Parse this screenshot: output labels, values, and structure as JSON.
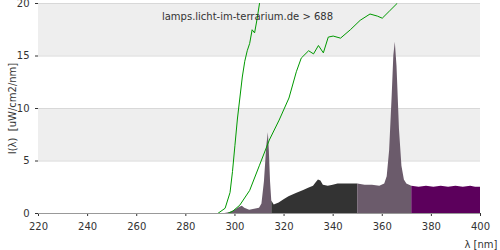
{
  "chart_data": {
    "type": "area",
    "title": "lamps.licht-im-terrarium.de > 688",
    "x_label": "λ [nm]",
    "y_label": "I(λ)  [uW/cm2/nm]",
    "xlim": [
      220,
      400
    ],
    "xticks": [
      220,
      240,
      260,
      280,
      300,
      320,
      340,
      360,
      380,
      400
    ],
    "ylim": [
      0,
      20
    ],
    "yticks": [
      0,
      5,
      10,
      15,
      20
    ],
    "grid": true,
    "series": [
      {
        "type": "area",
        "color": "#6b5b6b",
        "x": [
          296,
          298,
          300,
          302,
          303,
          304,
          306,
          308,
          310,
          311,
          312,
          313,
          313.6,
          314,
          314.5,
          315
        ],
        "values": [
          0,
          0.1,
          0.3,
          0.6,
          0.7,
          0.5,
          0.3,
          0.4,
          0.5,
          0.9,
          3,
          6.5,
          7.7,
          6,
          3,
          1.2
        ]
      },
      {
        "type": "area",
        "color": "#333333",
        "x": [
          315,
          316,
          318,
          320,
          322,
          325,
          328,
          330,
          332,
          333,
          334,
          335,
          336,
          338,
          340,
          342,
          345,
          348,
          350
        ],
        "values": [
          1.2,
          0.8,
          1,
          1.3,
          1.6,
          1.9,
          2.2,
          2.4,
          2.6,
          2.9,
          3.2,
          3.1,
          2.7,
          2.6,
          2.7,
          2.8,
          2.8,
          2.8,
          2.8
        ]
      },
      {
        "type": "area",
        "color": "#6b5b6b",
        "x": [
          350,
          353,
          356,
          359,
          361,
          362,
          363,
          364,
          364.7,
          365.3,
          366,
          367,
          368,
          369,
          370,
          372
        ],
        "values": [
          2.8,
          2.7,
          2.7,
          2.6,
          2.8,
          3.5,
          6,
          11,
          15,
          16.3,
          14,
          8,
          4.5,
          3.2,
          2.8,
          2.6
        ]
      },
      {
        "type": "area",
        "color": "#5c005c",
        "x": [
          372,
          375,
          378,
          381,
          384,
          387,
          390,
          393,
          396,
          398,
          400
        ],
        "values": [
          2.6,
          2.5,
          2.6,
          2.5,
          2.6,
          2.5,
          2.6,
          2.5,
          2.6,
          2.5,
          2.5
        ]
      },
      {
        "type": "line",
        "color": "#009900",
        "x": [
          293,
          296,
          298,
          299,
          300,
          301,
          302,
          303,
          304,
          305,
          306,
          307,
          308,
          309,
          310
        ],
        "values": [
          0,
          0.5,
          2,
          4,
          6.5,
          9,
          11,
          13,
          14.5,
          15.5,
          16.2,
          17.5,
          17.2,
          18.5,
          20
        ]
      },
      {
        "type": "line",
        "color": "#009900",
        "x": [
          297,
          299,
          302,
          306,
          310,
          314,
          318,
          322,
          325,
          327,
          330,
          332,
          334,
          336,
          338,
          340,
          343,
          347,
          351,
          355,
          358,
          360,
          363,
          366
        ],
        "values": [
          0,
          0.2,
          0.8,
          2.2,
          4.6,
          7,
          8.9,
          11,
          13.5,
          14.8,
          15.5,
          15.2,
          16,
          15.3,
          16.8,
          16.9,
          16.7,
          17.5,
          18.4,
          19,
          18.8,
          18.6,
          19.3,
          20
        ]
      }
    ]
  }
}
